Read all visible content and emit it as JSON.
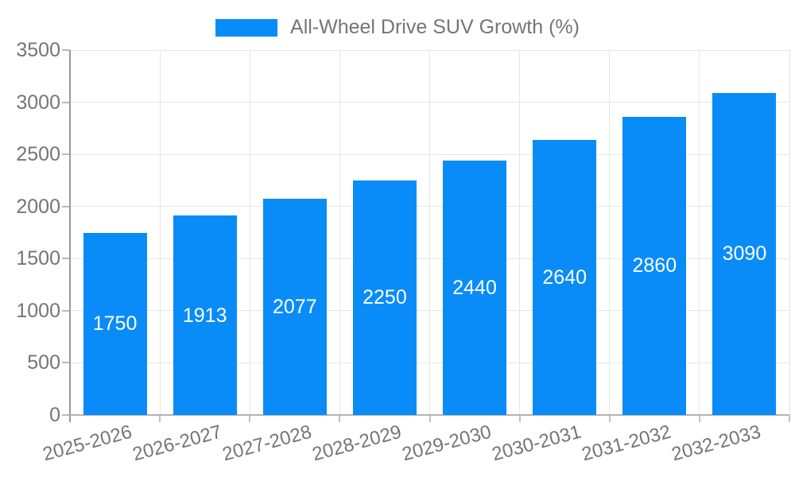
{
  "chart_data": {
    "type": "bar",
    "title": "",
    "legend_label": "All-Wheel Drive SUV Growth (%)",
    "legend_position": "top-center",
    "categories": [
      "2025-2026",
      "2026-2027",
      "2027-2028",
      "2028-2029",
      "2029-2030",
      "2030-2031",
      "2031-2032",
      "2032-2033"
    ],
    "values": [
      1750,
      1913,
      2077,
      2250,
      2440,
      2640,
      2860,
      3090
    ],
    "xlabel": "",
    "ylabel": "",
    "ylim": [
      0,
      3500
    ],
    "y_ticks": [
      0,
      500,
      1000,
      1500,
      2000,
      2500,
      3000,
      3500
    ],
    "grid": true,
    "x_label_rotation_deg": -15,
    "colors": {
      "bar": "#0a8cf8",
      "value_label": "#ffffff",
      "tick_label": "#757575",
      "grid_line": "#e6e6e6",
      "axis_line": "#999999",
      "background": "#ffffff"
    }
  }
}
